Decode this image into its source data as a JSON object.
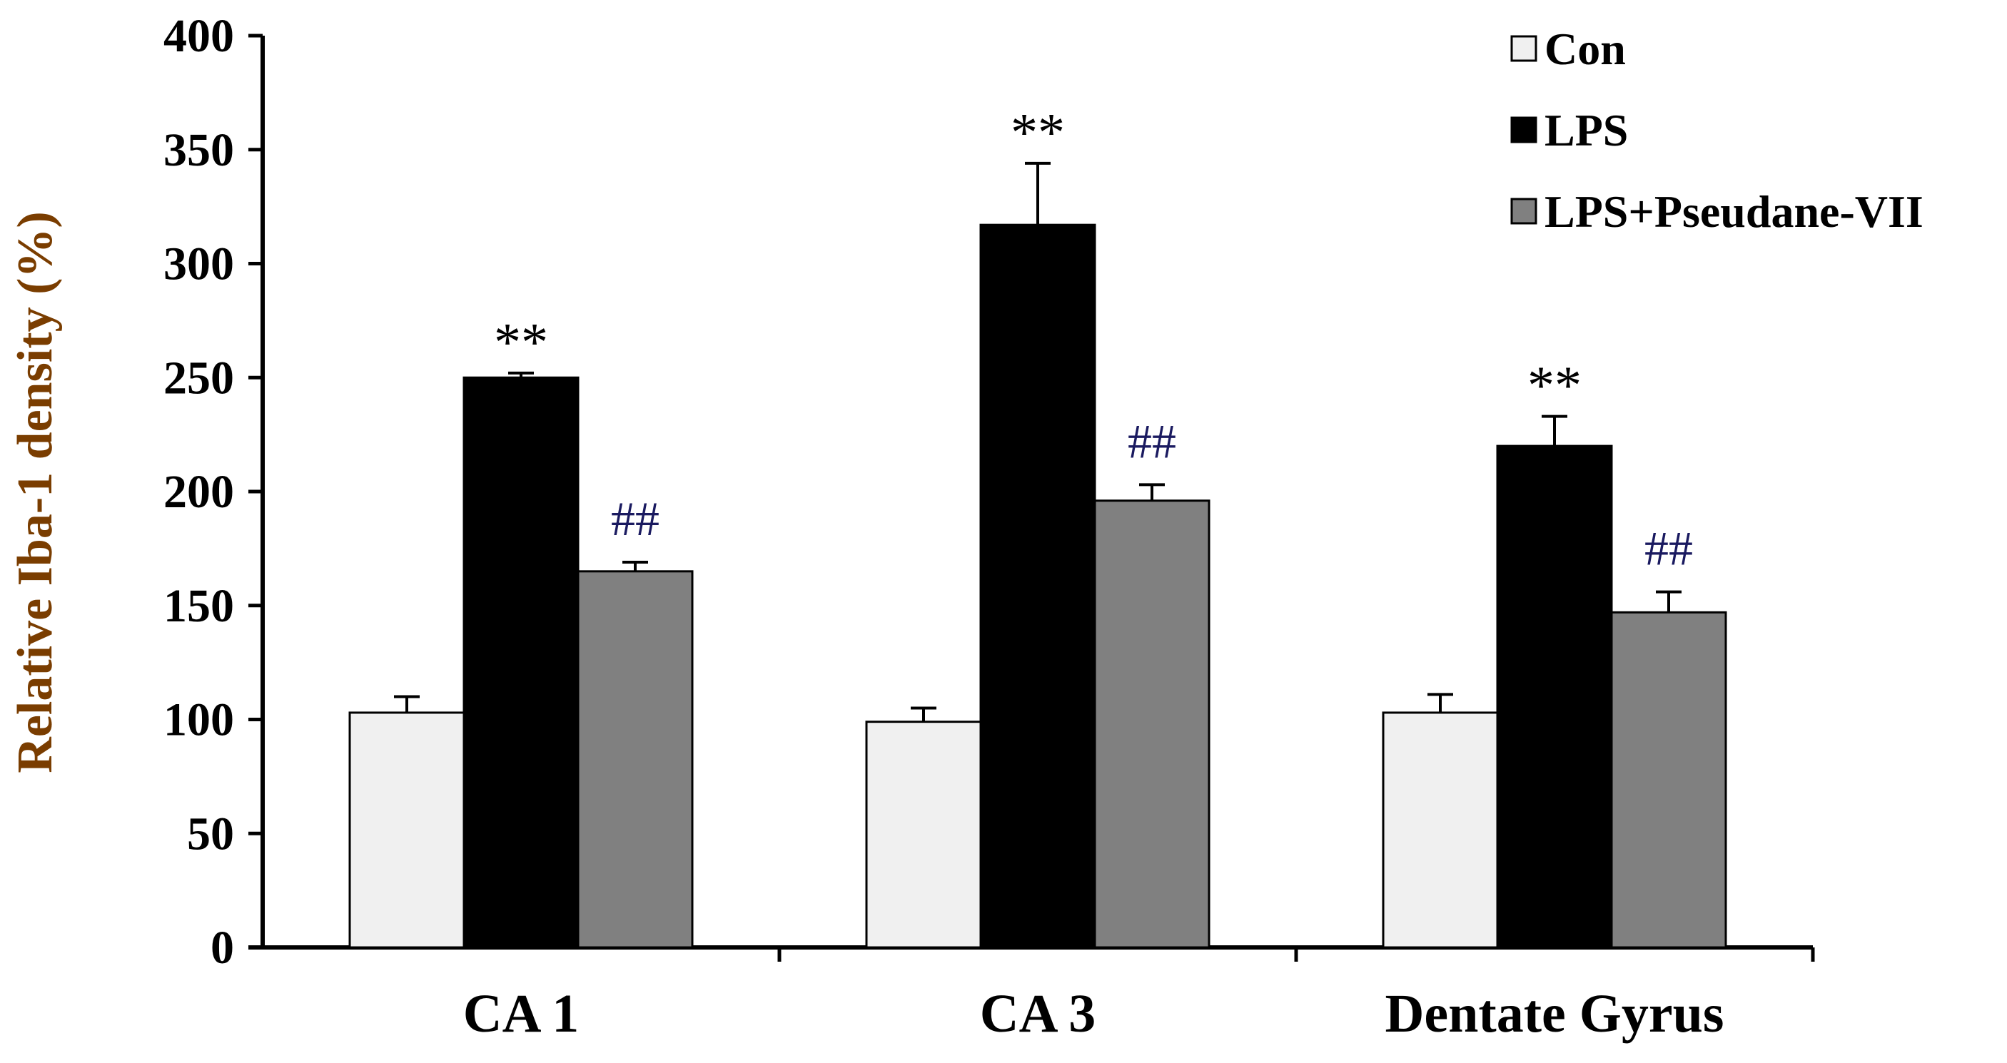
{
  "chart_data": {
    "type": "bar",
    "title": "",
    "xlabel": "",
    "ylabel": "Relative Iba-1 density (%)",
    "ylim": [
      0,
      400
    ],
    "yticks": [
      0,
      50,
      100,
      150,
      200,
      250,
      300,
      350,
      400
    ],
    "ytick_labels": [
      "0",
      "50",
      "100",
      "150",
      "200",
      "250",
      "300",
      "350",
      "400"
    ],
    "categories": [
      "CA 1",
      "CA 3",
      "Dentate Gyrus"
    ],
    "series": [
      {
        "name": "Con",
        "color": "#f0f0f0",
        "values": [
          103,
          99,
          103
        ],
        "errors": [
          7,
          6,
          8
        ]
      },
      {
        "name": "LPS",
        "color": "#000000",
        "values": [
          250,
          317,
          220
        ],
        "errors": [
          2,
          27,
          13
        ]
      },
      {
        "name": "LPS+Pseudane-VII",
        "color": "#808080",
        "values": [
          165,
          196,
          147
        ],
        "errors": [
          4,
          7,
          9
        ]
      }
    ],
    "annotations": [
      {
        "series": "LPS",
        "category": "CA 1",
        "text": "**"
      },
      {
        "series": "LPS",
        "category": "CA 3",
        "text": "**"
      },
      {
        "series": "LPS",
        "category": "Dentate Gyrus",
        "text": "**"
      },
      {
        "series": "LPS+Pseudane-VII",
        "category": "CA 1",
        "text": "##"
      },
      {
        "series": "LPS+Pseudane-VII",
        "category": "CA 3",
        "text": "##"
      },
      {
        "series": "LPS+Pseudane-VII",
        "category": "Dentate Gyrus",
        "text": "##"
      }
    ],
    "legend_position": "top-right",
    "grid": false,
    "ylabel_color": "#7a3d00",
    "star_color": "#000000",
    "hash_color": "#1a1a60"
  }
}
